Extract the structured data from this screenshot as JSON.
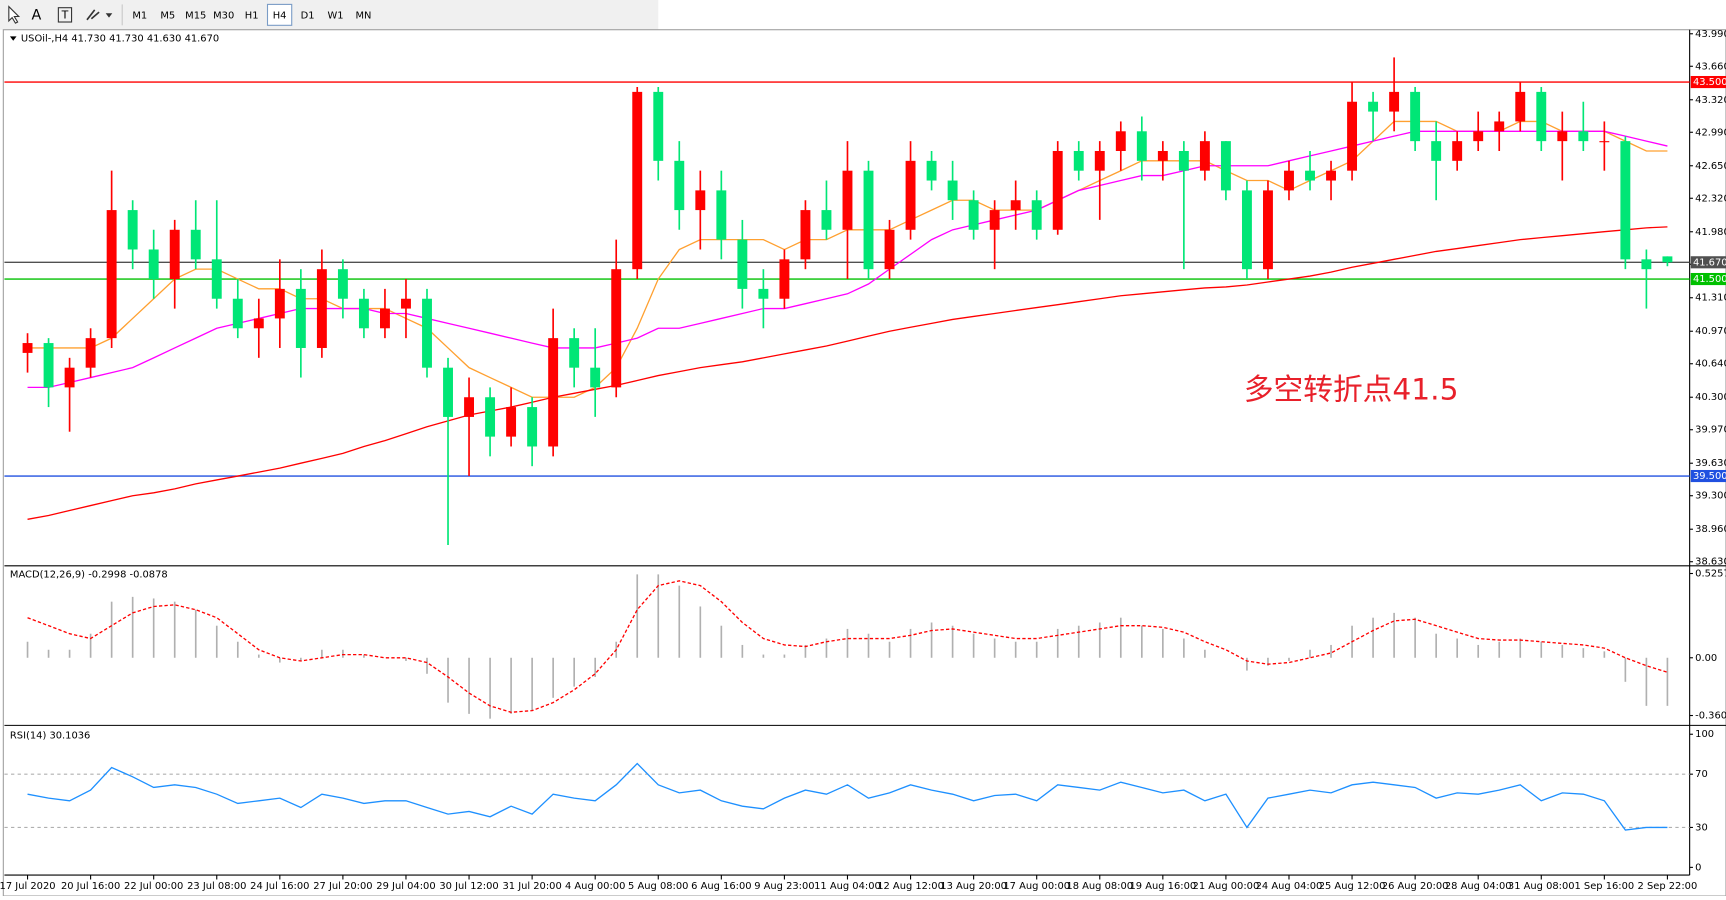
{
  "toolbar": {
    "tools": [
      "A",
      "T"
    ],
    "timeframes": [
      "M1",
      "M5",
      "M15",
      "M30",
      "H1",
      "H4",
      "D1",
      "W1",
      "MN"
    ],
    "active": "H4"
  },
  "chart_data": [
    {
      "type": "candlestick",
      "title": "USOil-,H4  41.730 41.730 41.630 41.670",
      "categories": [
        "17 Jul 2020",
        null,
        null,
        "20 Jul 16:00",
        null,
        null,
        "22 Jul 00:00",
        null,
        null,
        "23 Jul 08:00",
        null,
        null,
        "24 Jul 16:00",
        null,
        null,
        "27 Jul 20:00",
        null,
        null,
        "29 Jul 04:00",
        null,
        null,
        "30 Jul 12:00",
        null,
        null,
        "31 Jul 20:00",
        null,
        null,
        "4 Aug 00:00",
        null,
        null,
        "5 Aug 08:00",
        null,
        null,
        "6 Aug 16:00",
        null,
        null,
        "9 Aug 23:00",
        null,
        null,
        "11 Aug 04:00",
        null,
        null,
        "12 Aug 12:00",
        null,
        null,
        "13 Aug 20:00",
        null,
        null,
        "17 Aug 00:00",
        null,
        null,
        "18 Aug 08:00",
        null,
        null,
        "19 Aug 16:00",
        null,
        null,
        "21 Aug 00:00",
        null,
        null,
        "24 Aug 04:00",
        null,
        null,
        "25 Aug 12:00",
        null,
        null,
        "26 Aug 20:00",
        null,
        null,
        "28 Aug 04:00",
        null,
        null,
        "31 Aug 08:00",
        null,
        null,
        "1 Sep 16:00",
        null,
        null,
        "2 Sep 22:00"
      ],
      "ohlc": [
        [
          40.75,
          40.95,
          40.55,
          40.85
        ],
        [
          40.85,
          40.9,
          40.2,
          40.4
        ],
        [
          40.4,
          40.7,
          39.95,
          40.6
        ],
        [
          40.6,
          41.0,
          40.5,
          40.9
        ],
        [
          40.9,
          42.6,
          40.8,
          42.2
        ],
        [
          42.2,
          42.3,
          41.6,
          41.8
        ],
        [
          41.8,
          42.0,
          41.3,
          41.5
        ],
        [
          41.5,
          42.1,
          41.2,
          42.0
        ],
        [
          42.0,
          42.3,
          41.6,
          41.7
        ],
        [
          41.7,
          42.3,
          41.2,
          41.3
        ],
        [
          41.3,
          41.5,
          40.9,
          41.0
        ],
        [
          41.0,
          41.3,
          40.7,
          41.1
        ],
        [
          41.1,
          41.7,
          40.8,
          41.4
        ],
        [
          41.4,
          41.6,
          40.5,
          40.8
        ],
        [
          40.8,
          41.8,
          40.7,
          41.6
        ],
        [
          41.6,
          41.7,
          41.1,
          41.3
        ],
        [
          41.3,
          41.4,
          40.9,
          41.0
        ],
        [
          41.0,
          41.4,
          40.9,
          41.2
        ],
        [
          41.2,
          41.5,
          40.9,
          41.3
        ],
        [
          41.3,
          41.4,
          40.5,
          40.6
        ],
        [
          40.6,
          40.7,
          38.8,
          40.1
        ],
        [
          40.1,
          40.5,
          39.5,
          40.3
        ],
        [
          40.3,
          40.4,
          39.7,
          39.9
        ],
        [
          39.9,
          40.4,
          39.8,
          40.2
        ],
        [
          40.2,
          40.3,
          39.6,
          39.8
        ],
        [
          39.8,
          41.2,
          39.7,
          40.9
        ],
        [
          40.9,
          41.0,
          40.4,
          40.6
        ],
        [
          40.6,
          41.0,
          40.1,
          40.4
        ],
        [
          40.4,
          41.9,
          40.3,
          41.6
        ],
        [
          41.6,
          43.45,
          41.5,
          43.4
        ],
        [
          43.4,
          43.45,
          42.5,
          42.7
        ],
        [
          42.7,
          42.9,
          42.0,
          42.2
        ],
        [
          42.2,
          42.6,
          41.8,
          42.4
        ],
        [
          42.4,
          42.6,
          41.7,
          41.9
        ],
        [
          41.9,
          42.1,
          41.2,
          41.4
        ],
        [
          41.4,
          41.6,
          41.0,
          41.3
        ],
        [
          41.3,
          41.8,
          41.2,
          41.7
        ],
        [
          41.7,
          42.3,
          41.6,
          42.2
        ],
        [
          42.2,
          42.5,
          41.9,
          42.0
        ],
        [
          42.0,
          42.9,
          41.5,
          42.6
        ],
        [
          42.6,
          42.7,
          41.5,
          41.6
        ],
        [
          41.6,
          42.1,
          41.5,
          42.0
        ],
        [
          42.0,
          42.9,
          41.9,
          42.7
        ],
        [
          42.7,
          42.8,
          42.4,
          42.5
        ],
        [
          42.5,
          42.7,
          42.1,
          42.3
        ],
        [
          42.3,
          42.4,
          41.9,
          42.0
        ],
        [
          42.0,
          42.3,
          41.6,
          42.2
        ],
        [
          42.2,
          42.5,
          42.0,
          42.3
        ],
        [
          42.3,
          42.4,
          41.9,
          42.0
        ],
        [
          42.0,
          42.9,
          41.95,
          42.8
        ],
        [
          42.8,
          42.9,
          42.5,
          42.6
        ],
        [
          42.6,
          42.9,
          42.1,
          42.8
        ],
        [
          42.8,
          43.1,
          42.6,
          43.0
        ],
        [
          43.0,
          43.15,
          42.5,
          42.7
        ],
        [
          42.7,
          42.9,
          42.5,
          42.8
        ],
        [
          42.8,
          42.9,
          41.6,
          42.6
        ],
        [
          42.6,
          43.0,
          42.5,
          42.9
        ],
        [
          42.9,
          42.9,
          42.3,
          42.4
        ],
        [
          42.4,
          42.5,
          41.5,
          41.6
        ],
        [
          41.6,
          42.5,
          41.5,
          42.4
        ],
        [
          42.4,
          42.7,
          42.3,
          42.6
        ],
        [
          42.6,
          42.8,
          42.4,
          42.5
        ],
        [
          42.5,
          42.7,
          42.3,
          42.6
        ],
        [
          42.6,
          43.5,
          42.5,
          43.3
        ],
        [
          43.3,
          43.4,
          42.9,
          43.2
        ],
        [
          43.2,
          43.75,
          43.0,
          43.4
        ],
        [
          43.4,
          43.45,
          42.8,
          42.9
        ],
        [
          42.9,
          43.1,
          42.3,
          42.7
        ],
        [
          42.7,
          43.0,
          42.6,
          42.9
        ],
        [
          42.9,
          43.2,
          42.8,
          43.0
        ],
        [
          43.0,
          43.2,
          42.8,
          43.1
        ],
        [
          43.1,
          43.5,
          43.0,
          43.4
        ],
        [
          43.4,
          43.45,
          42.8,
          42.9
        ],
        [
          42.9,
          43.2,
          42.5,
          43.0
        ],
        [
          43.0,
          43.3,
          42.8,
          42.9
        ],
        [
          42.9,
          43.1,
          42.6,
          42.9
        ],
        [
          42.9,
          42.95,
          41.6,
          41.7
        ],
        [
          41.7,
          41.8,
          41.2,
          41.6
        ],
        [
          41.73,
          41.73,
          41.63,
          41.67
        ]
      ],
      "up_color": "#ff0000",
      "down_color": "#00e676",
      "series": [
        {
          "color": "#ffa030",
          "values": [
            40.8,
            40.8,
            40.8,
            40.8,
            40.9,
            41.1,
            41.3,
            41.5,
            41.6,
            41.6,
            41.5,
            41.4,
            41.4,
            41.3,
            41.3,
            41.2,
            41.2,
            41.2,
            41.1,
            41.0,
            40.8,
            40.6,
            40.5,
            40.4,
            40.3,
            40.3,
            40.3,
            40.4,
            40.6,
            41.0,
            41.5,
            41.8,
            41.9,
            41.9,
            41.9,
            41.9,
            41.8,
            41.9,
            41.9,
            42.0,
            42.0,
            42.0,
            42.1,
            42.2,
            42.3,
            42.3,
            42.2,
            42.2,
            42.2,
            42.3,
            42.4,
            42.5,
            42.6,
            42.7,
            42.7,
            42.7,
            42.7,
            42.6,
            42.5,
            42.5,
            42.4,
            42.5,
            42.6,
            42.7,
            42.9,
            43.1,
            43.1,
            43.1,
            43.0,
            43.0,
            43.0,
            43.1,
            43.1,
            43.0,
            43.0,
            43.0,
            42.9,
            42.8,
            42.8
          ]
        },
        {
          "color": "#ff00ff",
          "values": [
            40.4,
            40.4,
            40.45,
            40.5,
            40.55,
            40.6,
            40.7,
            40.8,
            40.9,
            41.0,
            41.05,
            41.1,
            41.15,
            41.2,
            41.2,
            41.2,
            41.2,
            41.15,
            41.15,
            41.1,
            41.05,
            41.0,
            40.95,
            40.9,
            40.85,
            40.8,
            40.8,
            40.8,
            40.85,
            40.9,
            41.0,
            41.0,
            41.05,
            41.1,
            41.15,
            41.2,
            41.2,
            41.25,
            41.3,
            41.35,
            41.45,
            41.6,
            41.75,
            41.9,
            42.0,
            42.05,
            42.1,
            42.15,
            42.2,
            42.3,
            42.4,
            42.45,
            42.5,
            42.55,
            42.55,
            42.6,
            42.65,
            42.65,
            42.65,
            42.65,
            42.7,
            42.75,
            42.8,
            42.85,
            42.9,
            42.95,
            43.0,
            43.0,
            43.0,
            43.0,
            43.0,
            43.0,
            43.0,
            43.0,
            43.0,
            43.0,
            42.95,
            42.9,
            42.85
          ]
        },
        {
          "color": "#ff0000",
          "values": [
            39.06,
            39.1,
            39.15,
            39.2,
            39.25,
            39.3,
            39.33,
            39.37,
            39.42,
            39.46,
            39.5,
            39.54,
            39.58,
            39.63,
            39.68,
            39.73,
            39.8,
            39.86,
            39.93,
            40.0,
            40.06,
            40.12,
            40.16,
            40.2,
            40.25,
            40.3,
            40.34,
            40.38,
            40.42,
            40.47,
            40.52,
            40.56,
            40.6,
            40.63,
            40.66,
            40.7,
            40.74,
            40.78,
            40.82,
            40.87,
            40.92,
            40.97,
            41.01,
            41.05,
            41.09,
            41.12,
            41.15,
            41.18,
            41.21,
            41.24,
            41.27,
            41.3,
            41.33,
            41.35,
            41.37,
            41.39,
            41.41,
            41.42,
            41.44,
            41.47,
            41.5,
            41.53,
            41.57,
            41.62,
            41.66,
            41.7,
            41.74,
            41.78,
            41.81,
            41.84,
            41.87,
            41.9,
            41.92,
            41.94,
            41.96,
            41.98,
            42.0,
            42.02,
            42.03
          ]
        }
      ],
      "ylim": [
        38.6,
        44.02
      ],
      "yticks": [
        {
          "value": 43.99,
          "label": "43.990"
        },
        {
          "value": 43.66,
          "label": "43.660"
        },
        {
          "value": 43.32,
          "label": "43.320"
        },
        {
          "value": 42.99,
          "label": "42.990"
        },
        {
          "value": 42.65,
          "label": "42.650"
        },
        {
          "value": 42.32,
          "label": "42.320"
        },
        {
          "value": 41.98,
          "label": "41.980"
        },
        {
          "value": 41.65,
          "label": "41.650"
        },
        {
          "value": 41.31,
          "label": "41.310"
        },
        {
          "value": 40.97,
          "label": "40.970"
        },
        {
          "value": 40.64,
          "label": "40.640"
        },
        {
          "value": 40.3,
          "label": "40.300"
        },
        {
          "value": 39.97,
          "label": "39.970"
        },
        {
          "value": 39.63,
          "label": "39.630"
        },
        {
          "value": 39.3,
          "label": "39.300"
        },
        {
          "value": 38.96,
          "label": "38.960"
        },
        {
          "value": 38.63,
          "label": "38.630"
        }
      ],
      "levels": [
        {
          "value": 43.5,
          "label": "43.500",
          "color": "#ff0000"
        },
        {
          "value": 41.67,
          "label": "41.670",
          "color": "#505050"
        },
        {
          "value": 41.5,
          "label": "41.500",
          "color": "#00c000"
        },
        {
          "value": 39.5,
          "label": "39.500",
          "color": "#2050e0"
        }
      ],
      "annotation": {
        "text": "多空转折点41.5",
        "color": "#e8202a"
      }
    },
    {
      "type": "macd",
      "title": "MACD(12,26,9) -0.2998 -0.0878",
      "histogram": [
        0.1,
        0.05,
        0.05,
        0.15,
        0.35,
        0.38,
        0.37,
        0.35,
        0.3,
        0.2,
        0.1,
        0.02,
        -0.03,
        -0.02,
        0.05,
        0.05,
        0.02,
        0.0,
        -0.02,
        -0.1,
        -0.28,
        -0.35,
        -0.38,
        -0.35,
        -0.33,
        -0.25,
        -0.18,
        -0.12,
        0.1,
        0.52,
        0.52,
        0.45,
        0.32,
        0.2,
        0.08,
        0.02,
        0.02,
        0.08,
        0.12,
        0.18,
        0.15,
        0.1,
        0.18,
        0.22,
        0.2,
        0.15,
        0.12,
        0.1,
        0.1,
        0.18,
        0.2,
        0.22,
        0.25,
        0.2,
        0.18,
        0.12,
        0.05,
        0.0,
        -0.08,
        -0.05,
        -0.02,
        0.05,
        0.08,
        0.2,
        0.25,
        0.28,
        0.25,
        0.15,
        0.12,
        0.08,
        0.1,
        0.12,
        0.1,
        0.08,
        0.06,
        0.04,
        -0.15,
        -0.3,
        -0.3
      ],
      "signal": [
        0.25,
        0.2,
        0.15,
        0.12,
        0.2,
        0.28,
        0.32,
        0.33,
        0.3,
        0.25,
        0.15,
        0.05,
        0.0,
        -0.02,
        0.0,
        0.02,
        0.02,
        0.0,
        0.0,
        -0.03,
        -0.12,
        -0.22,
        -0.3,
        -0.34,
        -0.33,
        -0.28,
        -0.2,
        -0.1,
        0.05,
        0.3,
        0.45,
        0.48,
        0.45,
        0.35,
        0.22,
        0.12,
        0.08,
        0.07,
        0.1,
        0.12,
        0.12,
        0.12,
        0.14,
        0.17,
        0.18,
        0.16,
        0.14,
        0.12,
        0.12,
        0.14,
        0.16,
        0.18,
        0.2,
        0.2,
        0.19,
        0.16,
        0.1,
        0.05,
        -0.02,
        -0.04,
        -0.03,
        0.0,
        0.03,
        0.1,
        0.17,
        0.23,
        0.24,
        0.2,
        0.16,
        0.12,
        0.11,
        0.11,
        0.1,
        0.09,
        0.08,
        0.06,
        0.0,
        -0.05,
        -0.09
      ],
      "histogram_color": "#b0b0b0",
      "signal_color": "#ff0000",
      "ylim": [
        -0.415,
        0.567
      ],
      "yticks": [
        0.5257,
        {
          "value": 0,
          "label": "0.00"
        },
        -0.3603
      ]
    },
    {
      "type": "line",
      "title": "RSI(14) 30.1036",
      "values": [
        55,
        52,
        50,
        58,
        75,
        68,
        60,
        62,
        60,
        55,
        48,
        50,
        52,
        45,
        55,
        52,
        48,
        50,
        50,
        45,
        40,
        42,
        38,
        46,
        40,
        55,
        52,
        50,
        62,
        78,
        62,
        56,
        58,
        50,
        46,
        44,
        52,
        58,
        55,
        62,
        52,
        56,
        62,
        58,
        55,
        50,
        54,
        55,
        50,
        62,
        60,
        58,
        64,
        60,
        56,
        58,
        50,
        55,
        30,
        52,
        55,
        58,
        56,
        62,
        64,
        62,
        60,
        52,
        56,
        55,
        58,
        62,
        50,
        56,
        55,
        50,
        28,
        30,
        30
      ],
      "color": "#1e90ff",
      "ylim": [
        -5.8,
        105
      ],
      "yticks": [
        100,
        70,
        30,
        0
      ],
      "grid": true
    }
  ]
}
